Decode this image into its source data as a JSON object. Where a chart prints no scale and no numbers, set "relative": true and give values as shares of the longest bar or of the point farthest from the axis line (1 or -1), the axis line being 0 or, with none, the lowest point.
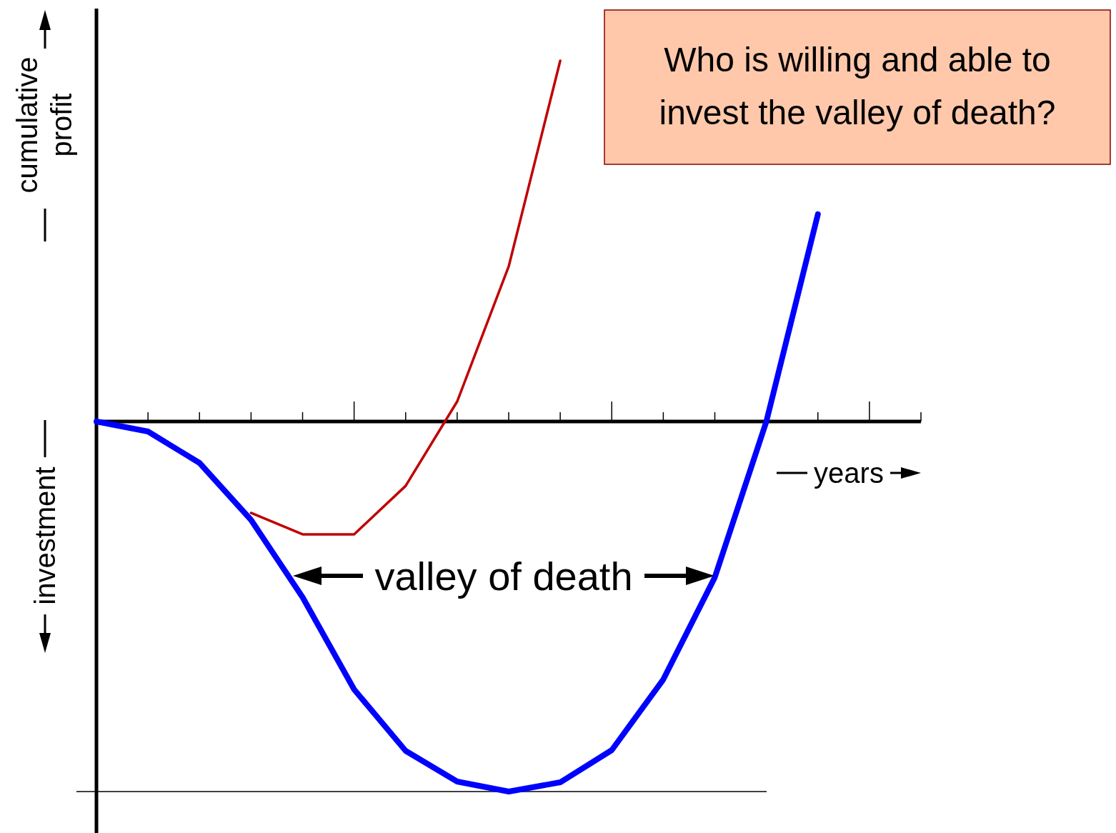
{
  "chart_data": {
    "type": "line",
    "relative": true,
    "title": "Who is willing and able to invest the valley of death?",
    "xlabel": "years",
    "ylabel": "cumulative profit",
    "annotations": [
      "investment",
      "valley of death"
    ],
    "categories": [
      null,
      null,
      null,
      null,
      null,
      null,
      null,
      null,
      null,
      null,
      null,
      null,
      null,
      null,
      null,
      null,
      null
    ],
    "grid": false,
    "marker": "none",
    "series": [
      {
        "color": "#c00000",
        "values": [
          null,
          null,
          null,
          -0.247,
          -0.305,
          -0.305,
          -0.174,
          0.054,
          0.419,
          0.975,
          null,
          null,
          null,
          null,
          null,
          null,
          null
        ]
      },
      {
        "color": "#0000ff",
        "values": [
          0,
          -0.027,
          -0.112,
          -0.266,
          -0.475,
          -0.724,
          -0.89,
          -0.973,
          -1,
          -0.975,
          -0.888,
          -0.697,
          -0.421,
          0,
          0.56,
          null,
          null
        ]
      }
    ],
    "ref_lines": [
      {
        "axis": "y",
        "value": -1,
        "color": "#000000"
      }
    ]
  }
}
